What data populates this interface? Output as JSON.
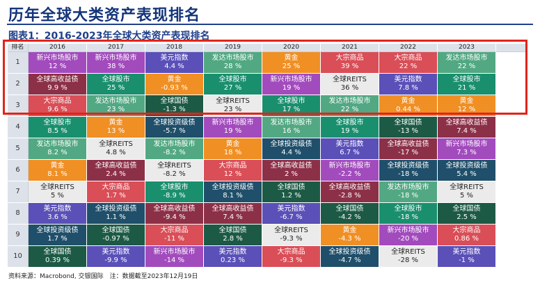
{
  "title": "历年全球大类资产表现排名",
  "subtitle": "图表1：2016-2023年全球大类资产表现排名",
  "source": "资料来源：Macrobond, 交银国际　注：数据截至2023年12月19日",
  "colors": {
    "全球股市": "#1a8f6e",
    "新兴市场股市": "#a24bbd",
    "美元指数": "#5a50b8",
    "发达市场股市": "#52a882",
    "黄金": "#f08f24",
    "大宗商品": "#d94e57",
    "全球高收益债": "#8c3048",
    "全球REITS": "#ebebeb",
    "全球投资级债": "#1f4f6a",
    "全球国债": "#1c5a45"
  },
  "table": {
    "rank_header": "排名",
    "years": [
      "2016",
      "2017",
      "2018",
      "2019",
      "2020",
      "2021",
      "2022",
      "2023"
    ],
    "rows": [
      {
        "rank": "1",
        "cells": [
          {
            "name": "新兴市场股市",
            "value": "12 %"
          },
          {
            "name": "新兴市场股市",
            "value": "38 %"
          },
          {
            "name": "美元指数",
            "value": "4.4 %"
          },
          {
            "name": "发达市场股市",
            "value": "28 %"
          },
          {
            "name": "黄金",
            "value": "25 %"
          },
          {
            "name": "大宗商品",
            "value": "39 %"
          },
          {
            "name": "大宗商品",
            "value": "22 %"
          },
          {
            "name": "发达市场股市",
            "value": "22 %"
          }
        ]
      },
      {
        "rank": "2",
        "cells": [
          {
            "name": "全球高收益债",
            "value": "9.9 %"
          },
          {
            "name": "全球股市",
            "value": "25 %"
          },
          {
            "name": "黄金",
            "value": "-0.93 %"
          },
          {
            "name": "全球股市",
            "value": "27 %"
          },
          {
            "name": "新兴市场股市",
            "value": "19 %"
          },
          {
            "name": "全球REITS",
            "value": "36 %"
          },
          {
            "name": "美元指数",
            "value": "7.8 %"
          },
          {
            "name": "全球股市",
            "value": "21 %"
          }
        ]
      },
      {
        "rank": "3",
        "cells": [
          {
            "name": "大宗商品",
            "value": "9.6 %"
          },
          {
            "name": "发达市场股市",
            "value": "23 %"
          },
          {
            "name": "全球国债",
            "value": "-1.3 %"
          },
          {
            "name": "全球REITS",
            "value": "23 %"
          },
          {
            "name": "全球股市",
            "value": "17 %"
          },
          {
            "name": "发达市场股市",
            "value": "22 %"
          },
          {
            "name": "黄金",
            "value": "0.44 %"
          },
          {
            "name": "黄金",
            "value": "12 %"
          }
        ]
      },
      {
        "rank": "4",
        "cells": [
          {
            "name": "全球股市",
            "value": "8.5 %"
          },
          {
            "name": "黄金",
            "value": "13 %"
          },
          {
            "name": "全球投资级债",
            "value": "-5.7 %"
          },
          {
            "name": "新兴市场股市",
            "value": "19 %"
          },
          {
            "name": "发达市场股市",
            "value": "16 %"
          },
          {
            "name": "全球股市",
            "value": "19 %"
          },
          {
            "name": "全球国债",
            "value": "-13 %"
          },
          {
            "name": "全球高收益债",
            "value": "7.4 %"
          }
        ]
      },
      {
        "rank": "5",
        "cells": [
          {
            "name": "发达市场股市",
            "value": "8.2 %"
          },
          {
            "name": "全球REITS",
            "value": "4.8 %"
          },
          {
            "name": "发达市场股市",
            "value": "-8.2 %"
          },
          {
            "name": "黄金",
            "value": "18 %"
          },
          {
            "name": "全球投资级债",
            "value": "4.4 %"
          },
          {
            "name": "美元指数",
            "value": "6.7 %"
          },
          {
            "name": "全球高收益债",
            "value": "-17 %"
          },
          {
            "name": "新兴市场股市",
            "value": "7.3 %"
          }
        ]
      },
      {
        "rank": "6",
        "cells": [
          {
            "name": "黄金",
            "value": "8.1 %"
          },
          {
            "name": "全球高收益债",
            "value": "2.4 %"
          },
          {
            "name": "全球REITS",
            "value": "-8.2 %"
          },
          {
            "name": "大宗商品",
            "value": "12 %"
          },
          {
            "name": "全球高收益债",
            "value": "2 %"
          },
          {
            "name": "新兴市场股市",
            "value": "-2.2 %"
          },
          {
            "name": "全球投资级债",
            "value": "-18 %"
          },
          {
            "name": "全球投资级债",
            "value": "5.4 %"
          }
        ]
      },
      {
        "rank": "7",
        "cells": [
          {
            "name": "全球REITS",
            "value": "5 %"
          },
          {
            "name": "大宗商品",
            "value": "1.7 %"
          },
          {
            "name": "全球股市",
            "value": "-8.9 %"
          },
          {
            "name": "全球投资级债",
            "value": "8.1 %"
          },
          {
            "name": "全球国债",
            "value": "1.2 %"
          },
          {
            "name": "全球高收益债",
            "value": "-2.8 %"
          },
          {
            "name": "发达市场股市",
            "value": "-18 %"
          },
          {
            "name": "全球REITS",
            "value": "5 %"
          }
        ]
      },
      {
        "rank": "8",
        "cells": [
          {
            "name": "美元指数",
            "value": "3.6 %"
          },
          {
            "name": "全球投资级债",
            "value": "1.1 %"
          },
          {
            "name": "全球高收益债",
            "value": "-9.4 %"
          },
          {
            "name": "全球高收益债",
            "value": "7.4 %"
          },
          {
            "name": "美元指数",
            "value": "-6.7 %"
          },
          {
            "name": "全球国债",
            "value": "-4.2 %"
          },
          {
            "name": "全球股市",
            "value": "-18 %"
          },
          {
            "name": "全球国债",
            "value": "2.5 %"
          }
        ]
      },
      {
        "rank": "9",
        "cells": [
          {
            "name": "全球投资级债",
            "value": "1.7 %"
          },
          {
            "name": "全球国债",
            "value": "-0.97 %"
          },
          {
            "name": "大宗商品",
            "value": "-11 %"
          },
          {
            "name": "全球国债",
            "value": "2.8 %"
          },
          {
            "name": "全球REITS",
            "value": "-9.3 %"
          },
          {
            "name": "黄金",
            "value": "-4.3 %"
          },
          {
            "name": "新兴市场股市",
            "value": "-20 %"
          },
          {
            "name": "大宗商品",
            "value": "0.86 %"
          }
        ]
      },
      {
        "rank": "10",
        "cells": [
          {
            "name": "全球国债",
            "value": "0.39 %"
          },
          {
            "name": "美元指数",
            "value": "-9.9 %"
          },
          {
            "name": "新兴市场股市",
            "value": "-14 %"
          },
          {
            "name": "美元指数",
            "value": "0.23 %"
          },
          {
            "name": "大宗商品",
            "value": "-9.3 %"
          },
          {
            "name": "全球投资级债",
            "value": "-4.7 %"
          },
          {
            "name": "全球REITS",
            "value": "-28 %"
          },
          {
            "name": "美元指数",
            "value": "-1 %"
          }
        ]
      }
    ]
  }
}
